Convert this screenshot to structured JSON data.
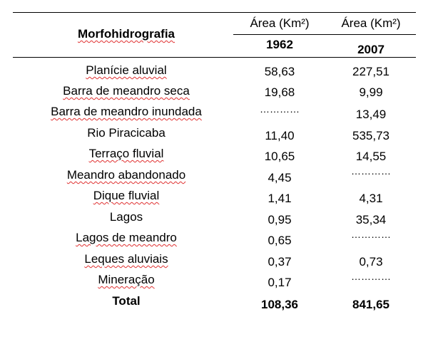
{
  "table": {
    "header": {
      "col1": "Morfohidrografia",
      "col2_label": "Área (Km²)",
      "col3_label": "Área (Km²)",
      "col2_year": "1962",
      "col3_year": "2007"
    },
    "rows": [
      {
        "name": "Planície aluvial",
        "v1962": "58,63",
        "v2007": "227,51"
      },
      {
        "name": "Barra de meandro seca",
        "v1962": "19,68",
        "v2007": "9,99"
      },
      {
        "name": "Barra de meandro inundada",
        "v1962": "…………",
        "v2007": "13,49"
      },
      {
        "name": "Rio Piracicaba",
        "v1962": "11,40",
        "v2007": "535,73"
      },
      {
        "name": "Terraço fluvial",
        "v1962": "10,65",
        "v2007": "14,55"
      },
      {
        "name": "Meandro abandonado",
        "v1962": "4,45",
        "v2007": "…………"
      },
      {
        "name": "Dique fluvial",
        "v1962": "1,41",
        "v2007": "4,31"
      },
      {
        "name": "Lagos",
        "v1962": "0,95",
        "v2007": "35,34"
      },
      {
        "name": "Lagos de meandro",
        "v1962": "0,65",
        "v2007": "…………"
      },
      {
        "name": "Leques aluviais",
        "v1962": "0,37",
        "v2007": "0,73"
      },
      {
        "name": "Mineração",
        "v1962": "0,17",
        "v2007": "…………"
      }
    ],
    "total": {
      "name": "Total",
      "v1962": "108,36",
      "v2007": "841,65"
    }
  }
}
